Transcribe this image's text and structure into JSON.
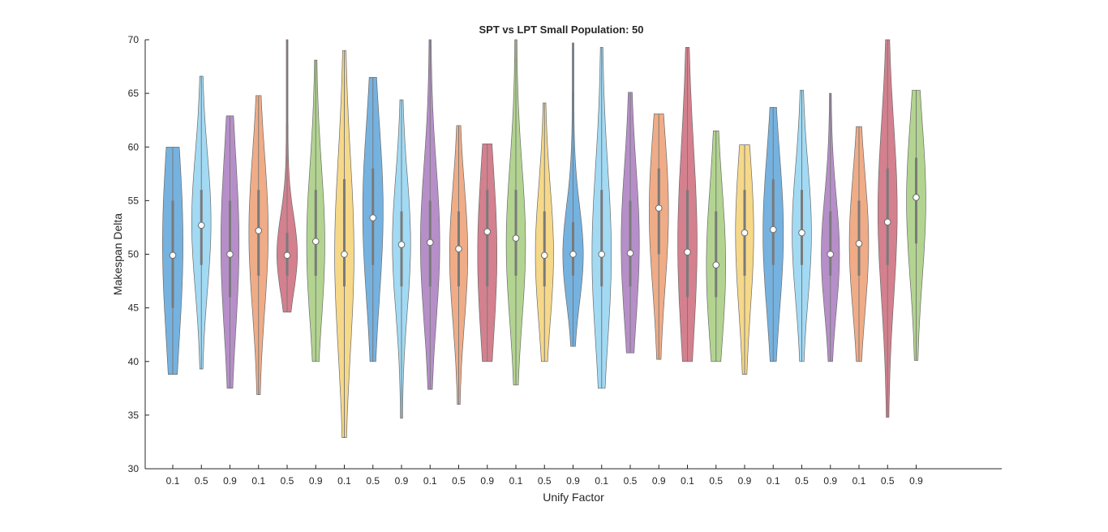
{
  "chart_data": {
    "type": "violin",
    "title": "SPT vs LPT Small Population: 50",
    "xlabel": "Unify Factor",
    "ylabel": "Makespan Delta",
    "ylim": [
      30,
      70
    ],
    "yticks": [
      30,
      35,
      40,
      45,
      50,
      55,
      60,
      65,
      70
    ],
    "categories": [
      "0.1",
      "0.5",
      "0.9",
      "0.1",
      "0.5",
      "0.9",
      "0.1",
      "0.5",
      "0.9",
      "0.1",
      "0.5",
      "0.9",
      "0.1",
      "0.5",
      "0.9",
      "0.1",
      "0.5",
      "0.9",
      "0.1",
      "0.5",
      "0.9",
      "0.1",
      "0.5",
      "0.9",
      "0.1",
      "0.5",
      "0.9"
    ],
    "violins": [
      {
        "min": 38.8,
        "max": 60.0,
        "median": 49.9,
        "q1": 45.0,
        "q3": 55.0,
        "mode": 51.0,
        "width": 0.9,
        "color": "#5DA5DA"
      },
      {
        "min": 39.3,
        "max": 66.6,
        "median": 52.7,
        "q1": 49.0,
        "q3": 56.0,
        "mode": 53.0,
        "width": 0.85,
        "color": "#92D4F2"
      },
      {
        "min": 37.5,
        "max": 62.9,
        "median": 50.0,
        "q1": 46.0,
        "q3": 55.0,
        "mode": 51.0,
        "width": 0.8,
        "color": "#A97BC0"
      },
      {
        "min": 36.9,
        "max": 64.8,
        "median": 52.2,
        "q1": 48.0,
        "q3": 56.0,
        "mode": 52.0,
        "width": 0.85,
        "color": "#EC9D72"
      },
      {
        "min": 44.6,
        "max": 70.0,
        "median": 49.9,
        "q1": 48.0,
        "q3": 52.0,
        "mode": 50.0,
        "width": 0.9,
        "color": "#CC6A7A"
      },
      {
        "min": 40.0,
        "max": 68.1,
        "median": 51.2,
        "q1": 48.0,
        "q3": 56.0,
        "mode": 51.0,
        "width": 0.8,
        "color": "#A4CC7D"
      },
      {
        "min": 32.9,
        "max": 69.0,
        "median": 50.0,
        "q1": 47.0,
        "q3": 57.0,
        "mode": 50.0,
        "width": 0.85,
        "color": "#F5D174"
      },
      {
        "min": 40.0,
        "max": 66.5,
        "median": 53.4,
        "q1": 49.0,
        "q3": 58.0,
        "mode": 54.0,
        "width": 0.9,
        "color": "#5DA5DA"
      },
      {
        "min": 34.7,
        "max": 64.4,
        "median": 50.9,
        "q1": 47.0,
        "q3": 54.0,
        "mode": 51.0,
        "width": 0.8,
        "color": "#92D4F2"
      },
      {
        "min": 37.4,
        "max": 70.0,
        "median": 51.1,
        "q1": 47.0,
        "q3": 55.0,
        "mode": 51.0,
        "width": 0.85,
        "color": "#A97BC0"
      },
      {
        "min": 36.0,
        "max": 62.0,
        "median": 50.5,
        "q1": 47.0,
        "q3": 54.0,
        "mode": 50.0,
        "width": 0.8,
        "color": "#EC9D72"
      },
      {
        "min": 40.0,
        "max": 60.3,
        "median": 52.1,
        "q1": 47.0,
        "q3": 56.0,
        "mode": 50.0,
        "width": 0.85,
        "color": "#CC6A7A"
      },
      {
        "min": 37.8,
        "max": 70.0,
        "median": 51.5,
        "q1": 48.0,
        "q3": 56.0,
        "mode": 51.0,
        "width": 0.85,
        "color": "#A4CC7D"
      },
      {
        "min": 40.0,
        "max": 64.1,
        "median": 49.9,
        "q1": 47.0,
        "q3": 54.0,
        "mode": 50.0,
        "width": 0.8,
        "color": "#F5D174"
      },
      {
        "min": 41.4,
        "max": 69.7,
        "median": 50.0,
        "q1": 48.0,
        "q3": 53.0,
        "mode": 50.0,
        "width": 0.9,
        "color": "#5DA5DA"
      },
      {
        "min": 37.5,
        "max": 69.3,
        "median": 50.0,
        "q1": 47.0,
        "q3": 56.0,
        "mode": 50.0,
        "width": 0.85,
        "color": "#92D4F2"
      },
      {
        "min": 40.8,
        "max": 65.1,
        "median": 50.1,
        "q1": 47.0,
        "q3": 55.0,
        "mode": 51.0,
        "width": 0.8,
        "color": "#A97BC0"
      },
      {
        "min": 40.2,
        "max": 63.1,
        "median": 54.3,
        "q1": 50.0,
        "q3": 58.0,
        "mode": 54.0,
        "width": 0.85,
        "color": "#EC9D72"
      },
      {
        "min": 40.0,
        "max": 69.3,
        "median": 50.2,
        "q1": 46.0,
        "q3": 56.0,
        "mode": 51.0,
        "width": 0.85,
        "color": "#CC6A7A"
      },
      {
        "min": 40.0,
        "max": 61.5,
        "median": 49.0,
        "q1": 46.0,
        "q3": 54.0,
        "mode": 49.0,
        "width": 0.85,
        "color": "#A4CC7D"
      },
      {
        "min": 38.8,
        "max": 60.2,
        "median": 52.0,
        "q1": 48.0,
        "q3": 56.0,
        "mode": 52.0,
        "width": 0.8,
        "color": "#F5D174"
      },
      {
        "min": 40.0,
        "max": 63.7,
        "median": 52.3,
        "q1": 49.0,
        "q3": 57.0,
        "mode": 52.0,
        "width": 0.9,
        "color": "#5DA5DA"
      },
      {
        "min": 40.0,
        "max": 65.3,
        "median": 52.0,
        "q1": 49.0,
        "q3": 56.0,
        "mode": 52.0,
        "width": 0.85,
        "color": "#92D4F2"
      },
      {
        "min": 40.0,
        "max": 65.0,
        "median": 50.0,
        "q1": 48.0,
        "q3": 54.0,
        "mode": 50.0,
        "width": 0.8,
        "color": "#A97BC0"
      },
      {
        "min": 40.0,
        "max": 61.9,
        "median": 51.0,
        "q1": 48.0,
        "q3": 55.0,
        "mode": 51.0,
        "width": 0.85,
        "color": "#EC9D72"
      },
      {
        "min": 34.8,
        "max": 70.0,
        "median": 53.0,
        "q1": 49.0,
        "q3": 58.0,
        "mode": 54.0,
        "width": 0.85,
        "color": "#CC6A7A"
      },
      {
        "min": 40.1,
        "max": 65.3,
        "median": 55.3,
        "q1": 51.0,
        "q3": 59.0,
        "mode": 55.0,
        "width": 0.85,
        "color": "#A4CC7D"
      }
    ],
    "grid": false,
    "legend": "none"
  }
}
